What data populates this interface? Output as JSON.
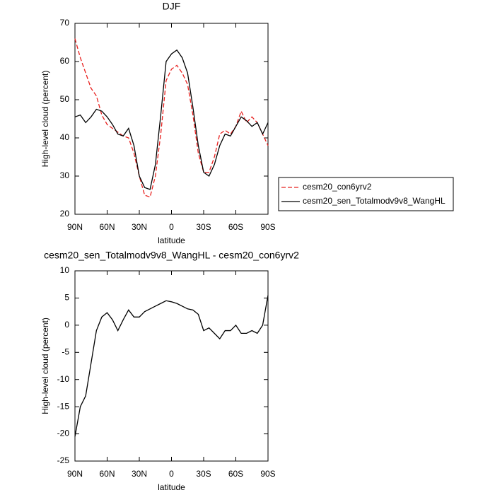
{
  "chart_data": [
    {
      "type": "line",
      "title": "DJF",
      "x_label": "latitude",
      "y_label": "High-level cloud (percent)",
      "x": [
        90,
        85,
        80,
        75,
        70,
        65,
        60,
        55,
        50,
        45,
        40,
        35,
        30,
        25,
        20,
        15,
        10,
        5,
        0,
        -5,
        -10,
        -15,
        -20,
        -25,
        -30,
        -35,
        -40,
        -45,
        -50,
        -55,
        -60,
        -65,
        -70,
        -75,
        -80,
        -85,
        -90
      ],
      "xlim": [
        90,
        -90
      ],
      "xticks": [
        {
          "value": 90,
          "label": "90N"
        },
        {
          "value": 60,
          "label": "60N"
        },
        {
          "value": 30,
          "label": "30N"
        },
        0,
        {
          "value": -30,
          "label": "30S"
        },
        {
          "value": -60,
          "label": "60S"
        },
        {
          "value": -90,
          "label": "90S"
        }
      ],
      "ylim": [
        20,
        70
      ],
      "yticks": [
        20,
        30,
        40,
        50,
        60,
        70
      ],
      "legend": "right",
      "series": [
        {
          "name": "cesm20_con6yrv2",
          "color": "#e8201e",
          "style": "dashed",
          "values": [
            66,
            61,
            57,
            53,
            51,
            46,
            43.5,
            42.5,
            41.5,
            40.5,
            40,
            36,
            30,
            25,
            24.5,
            30,
            41,
            55,
            58,
            59,
            57,
            54,
            46,
            36,
            31,
            31,
            35,
            41,
            42,
            41,
            43,
            47,
            44,
            45.5,
            44,
            41,
            38
          ]
        },
        {
          "name": "cesm20_sen_Totalmodv9v8_WangHL",
          "color": "#000000",
          "style": "solid",
          "values": [
            45.5,
            46,
            44,
            45.5,
            47.5,
            47,
            45.5,
            43.5,
            41,
            40.5,
            42.5,
            38,
            30,
            27,
            26.5,
            33,
            46,
            60,
            62,
            63,
            61,
            57,
            48,
            38,
            31,
            30,
            33,
            38,
            41,
            40.5,
            43,
            45.5,
            44.5,
            43,
            44,
            41,
            44
          ]
        }
      ]
    },
    {
      "type": "line",
      "title": "cesm20_sen_Totalmodv9v8_WangHL - cesm20_con6yrv2",
      "x_label": "latitude",
      "y_label": "High-level cloud (percent)",
      "x": [
        90,
        85,
        80,
        75,
        70,
        65,
        60,
        55,
        50,
        45,
        40,
        35,
        30,
        25,
        20,
        15,
        10,
        5,
        0,
        -5,
        -10,
        -15,
        -20,
        -25,
        -30,
        -35,
        -40,
        -45,
        -50,
        -55,
        -60,
        -65,
        -70,
        -75,
        -80,
        -85,
        -90
      ],
      "xlim": [
        90,
        -90
      ],
      "xticks": [
        {
          "value": 90,
          "label": "90N"
        },
        {
          "value": 60,
          "label": "60N"
        },
        {
          "value": 30,
          "label": "30N"
        },
        0,
        {
          "value": -30,
          "label": "30S"
        },
        {
          "value": -60,
          "label": "60S"
        },
        {
          "value": -90,
          "label": "90S"
        }
      ],
      "ylim": [
        -25,
        10
      ],
      "yticks": [
        -25,
        -20,
        -15,
        -10,
        -5,
        0,
        5,
        10
      ],
      "color": "#000000",
      "values": [
        -20.5,
        -15,
        -13,
        -7,
        -1,
        1.5,
        2.3,
        1,
        -1,
        1,
        2.8,
        1.5,
        1.5,
        2.5,
        3,
        3.5,
        4,
        4.5,
        4.3,
        4,
        3.5,
        3,
        2.8,
        2,
        -1,
        -0.5,
        -1.5,
        -2.5,
        -1,
        -1,
        0,
        -1.5,
        -1.5,
        -1,
        -1.5,
        0,
        5.5
      ]
    }
  ]
}
